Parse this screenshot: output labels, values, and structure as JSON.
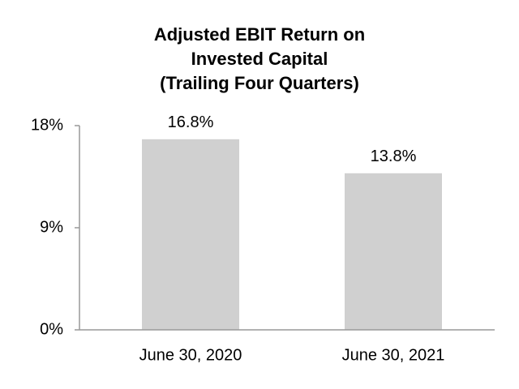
{
  "chart_data": {
    "type": "bar",
    "title": [
      "Adjusted EBIT Return on",
      "Invested Capital",
      "(Trailing Four Quarters)"
    ],
    "categories": [
      "June 30, 2020",
      "June 30, 2021"
    ],
    "values": [
      16.8,
      13.8
    ],
    "value_labels": [
      "16.8%",
      "13.8%"
    ],
    "color": "#d0d0d0",
    "ylim": [
      0,
      18
    ],
    "yticks": [
      {
        "value": 0,
        "label": "0%"
      },
      {
        "value": 9,
        "label": "9%"
      },
      {
        "value": 18,
        "label": "18%"
      }
    ],
    "grid": false
  }
}
